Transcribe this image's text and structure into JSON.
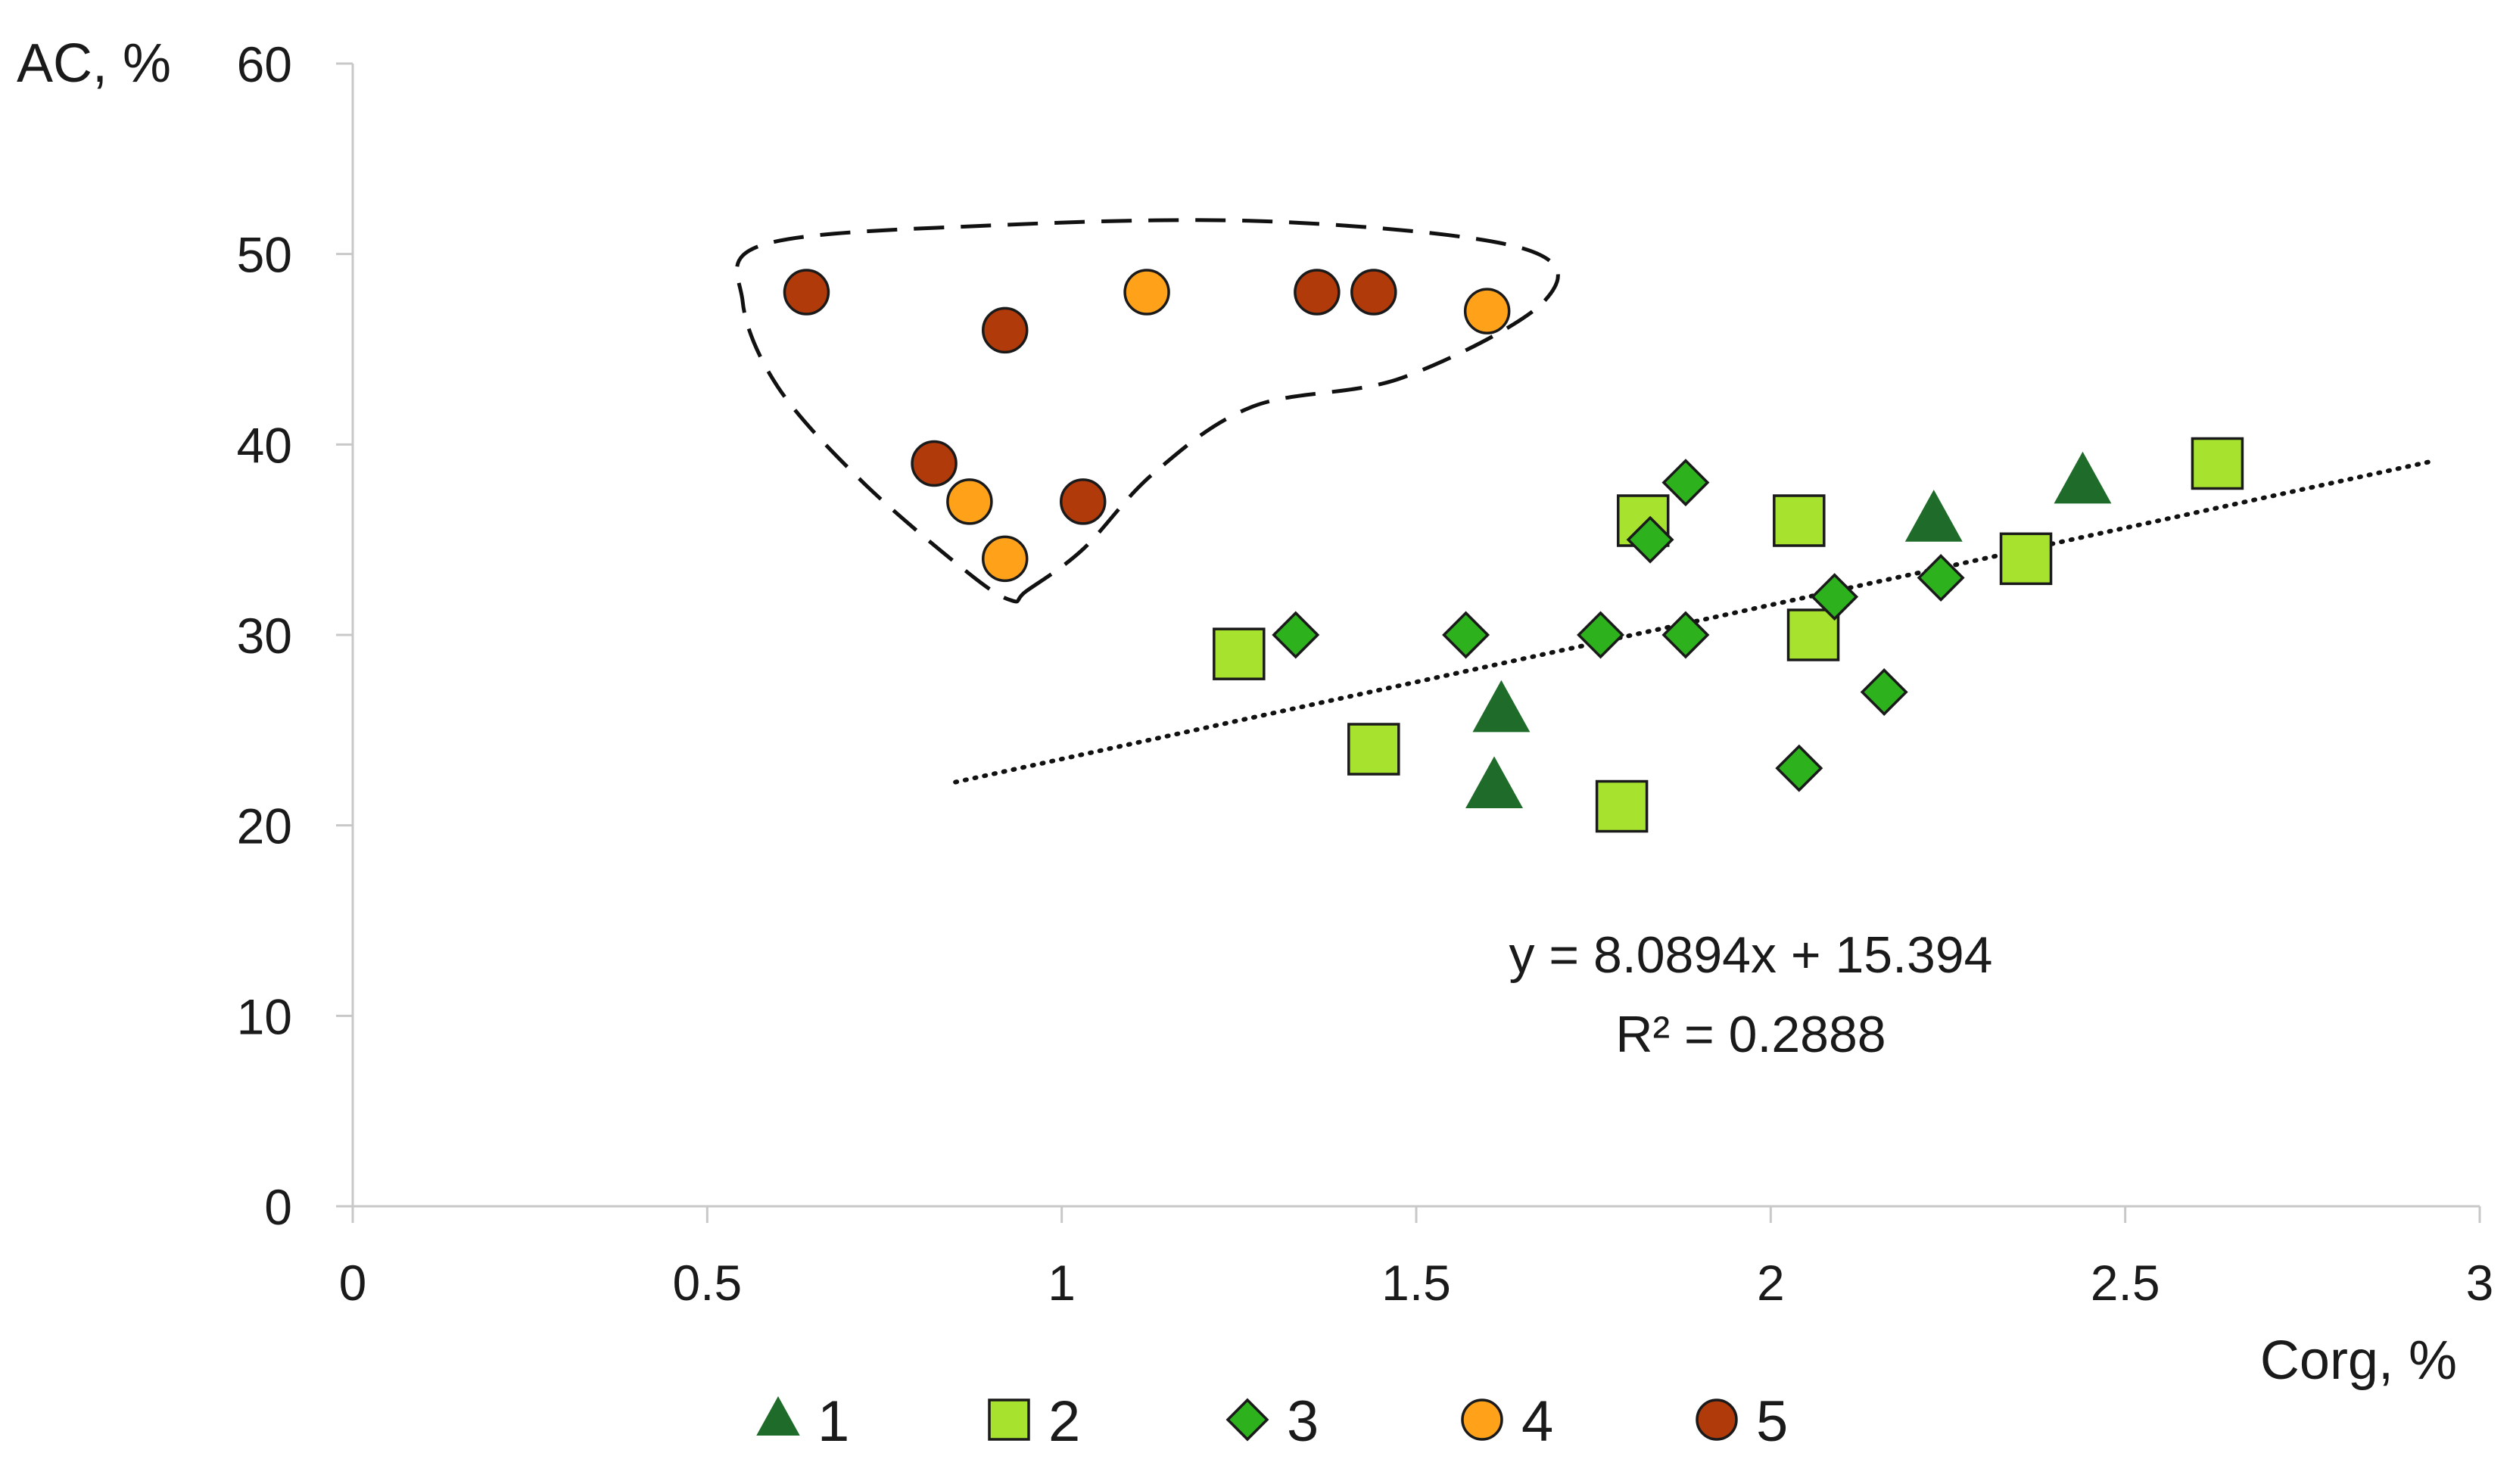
{
  "chart_data": {
    "type": "scatter",
    "title": "",
    "xlabel": "Corg, %",
    "ylabel": "AC, %",
    "xlim": [
      0,
      3
    ],
    "ylim": [
      0,
      60
    ],
    "xticks": [
      0,
      0.5,
      1,
      1.5,
      2,
      2.5,
      3
    ],
    "xtick_labels": [
      "0",
      "0.5",
      "1",
      "1.5",
      "2",
      "2.5",
      "3"
    ],
    "yticks": [
      0,
      10,
      20,
      30,
      40,
      50,
      60
    ],
    "ytick_labels": [
      "0",
      "10",
      "20",
      "30",
      "40",
      "50",
      "60"
    ],
    "grid": false,
    "legend_position": "bottom",
    "series": [
      {
        "name": "1",
        "marker": "triangle",
        "color": "#1f6b2a",
        "points": [
          {
            "x": 1.61,
            "y": 22
          },
          {
            "x": 1.62,
            "y": 26
          },
          {
            "x": 2.23,
            "y": 36
          },
          {
            "x": 2.44,
            "y": 38
          }
        ]
      },
      {
        "name": "2",
        "marker": "square",
        "color": "#a6e22e",
        "points": [
          {
            "x": 1.25,
            "y": 29
          },
          {
            "x": 1.44,
            "y": 24
          },
          {
            "x": 1.79,
            "y": 21
          },
          {
            "x": 1.82,
            "y": 36
          },
          {
            "x": 2.04,
            "y": 36
          },
          {
            "x": 2.06,
            "y": 30
          },
          {
            "x": 2.36,
            "y": 34
          },
          {
            "x": 2.63,
            "y": 39
          }
        ]
      },
      {
        "name": "3",
        "marker": "diamond",
        "color": "#2db21e",
        "points": [
          {
            "x": 1.33,
            "y": 30
          },
          {
            "x": 1.57,
            "y": 30
          },
          {
            "x": 1.76,
            "y": 30
          },
          {
            "x": 1.83,
            "y": 35
          },
          {
            "x": 1.88,
            "y": 38
          },
          {
            "x": 1.88,
            "y": 30
          },
          {
            "x": 2.04,
            "y": 23
          },
          {
            "x": 2.09,
            "y": 32
          },
          {
            "x": 2.16,
            "y": 27
          },
          {
            "x": 2.24,
            "y": 33
          }
        ]
      },
      {
        "name": "4",
        "marker": "circle",
        "color": "#ffa21a",
        "points": [
          {
            "x": 0.87,
            "y": 37
          },
          {
            "x": 0.92,
            "y": 34
          },
          {
            "x": 1.12,
            "y": 48
          },
          {
            "x": 1.6,
            "y": 47
          }
        ]
      },
      {
        "name": "5",
        "marker": "circle",
        "color": "#b13a0a",
        "points": [
          {
            "x": 0.64,
            "y": 48
          },
          {
            "x": 0.82,
            "y": 39
          },
          {
            "x": 0.92,
            "y": 46
          },
          {
            "x": 1.03,
            "y": 37
          },
          {
            "x": 1.36,
            "y": 48
          },
          {
            "x": 1.44,
            "y": 48
          }
        ]
      }
    ],
    "trendline": {
      "style": "dotted",
      "slope": 8.0894,
      "intercept": 15.394,
      "x_start": 0.85,
      "x_end": 2.93,
      "equation_label": "y = 8.0894x + 15.394",
      "r2_label": "R² = 0.2888"
    },
    "annotation_outline": {
      "style": "dashed",
      "encloses_series": [
        "4",
        "5"
      ],
      "path_data_points": [
        {
          "x": 0.95,
          "y": 32.3
        },
        {
          "x": 1.03,
          "y": 34.5
        },
        {
          "x": 1.13,
          "y": 38.5
        },
        {
          "x": 1.27,
          "y": 42.0
        },
        {
          "x": 1.48,
          "y": 43.5
        },
        {
          "x": 1.68,
          "y": 47.5
        },
        {
          "x": 1.65,
          "y": 50.3
        },
        {
          "x": 1.3,
          "y": 51.7
        },
        {
          "x": 0.9,
          "y": 51.5
        },
        {
          "x": 0.58,
          "y": 50.5
        },
        {
          "x": 0.55,
          "y": 47.5
        },
        {
          "x": 0.6,
          "y": 43.0
        },
        {
          "x": 0.72,
          "y": 38.0
        },
        {
          "x": 0.87,
          "y": 33.2
        },
        {
          "x": 0.93,
          "y": 31.8
        }
      ]
    }
  }
}
